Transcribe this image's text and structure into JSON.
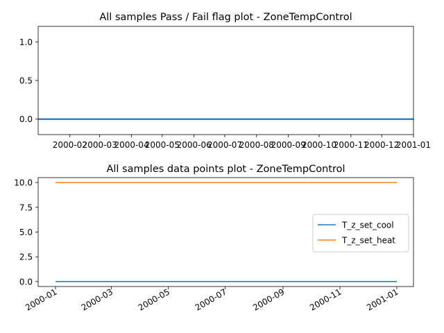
{
  "chart_data": [
    {
      "type": "line",
      "title": "All samples Pass / Fail flag plot - ZoneTempControl",
      "xlabel": "",
      "ylabel": "",
      "x_range": [
        "2000-01-01",
        "2001-01-01"
      ],
      "ylim": [
        -0.2,
        1.2
      ],
      "x_tick_labels": [
        "2000-02",
        "2000-03",
        "2000-04",
        "2000-05",
        "2000-06",
        "2000-07",
        "2000-08",
        "2000-09",
        "2000-10",
        "2000-11",
        "2000-12",
        "2001-01"
      ],
      "y_ticks": [
        "0.0",
        "0.5",
        "1.0"
      ],
      "grid": false,
      "series": [
        {
          "x": [
            "2000-01-01",
            "2001-01-01"
          ],
          "values": [
            0,
            0
          ],
          "color": "#1f77b4"
        }
      ]
    },
    {
      "type": "line",
      "title": "All samples data points plot - ZoneTempControl",
      "xlabel": "",
      "ylabel": "",
      "x_range": [
        "2000-01-01",
        "2001-01-01"
      ],
      "ylim": [
        -0.5,
        10.5
      ],
      "x_tick_labels": [
        "2000-01",
        "2000-03",
        "2000-05",
        "2000-07",
        "2000-09",
        "2000-11",
        "2001-01"
      ],
      "y_ticks": [
        "0.0",
        "2.5",
        "5.0",
        "7.5",
        "10.0"
      ],
      "grid": false,
      "legend": "center-right",
      "series": [
        {
          "name": "T_z_set_cool",
          "x": [
            "2000-01-01",
            "2001-01-01"
          ],
          "values": [
            0,
            0
          ],
          "color": "#1f77b4"
        },
        {
          "name": "T_z_set_heat",
          "x": [
            "2000-01-01",
            "2001-01-01"
          ],
          "values": [
            10,
            10
          ],
          "color": "#ff7f0e"
        }
      ]
    }
  ]
}
